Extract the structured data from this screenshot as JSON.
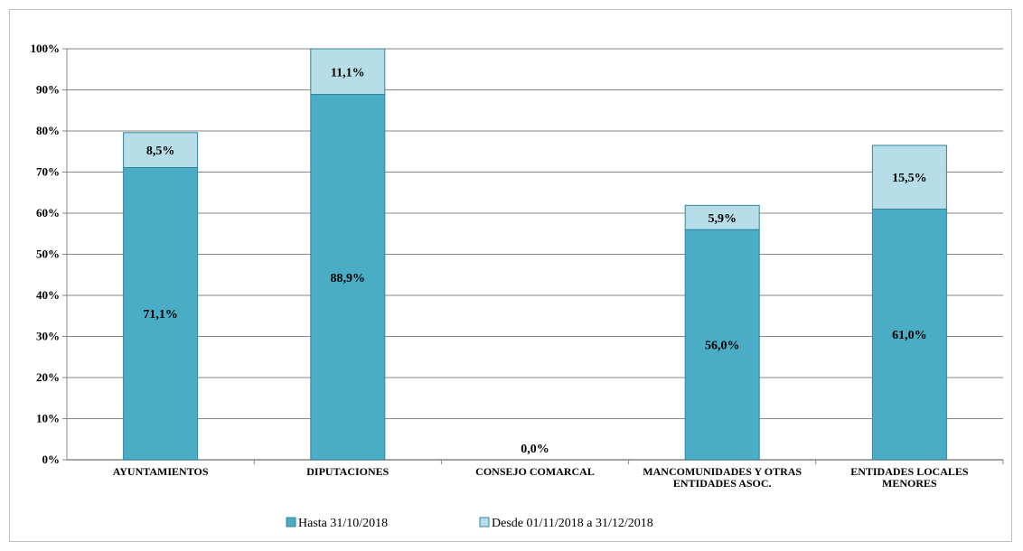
{
  "chart_data": {
    "type": "bar",
    "stacked": true,
    "title": "",
    "xlabel": "",
    "ylabel": "",
    "ylim": [
      0,
      100
    ],
    "yticks": [
      "0%",
      "10%",
      "20%",
      "30%",
      "40%",
      "50%",
      "60%",
      "70%",
      "80%",
      "90%",
      "100%"
    ],
    "grid": true,
    "legend_position": "bottom",
    "categories": [
      [
        "AYUNTAMIENTOS"
      ],
      [
        "DIPUTACIONES"
      ],
      [
        "CONSEJO COMARCAL"
      ],
      [
        "MANCOMUNIDADES Y OTRAS",
        "ENTIDADES ASOC."
      ],
      [
        "ENTIDADES LOCALES",
        "MENORES"
      ]
    ],
    "series": [
      {
        "name": "Hasta 31/10/2018",
        "color": "#4bacc6",
        "values": [
          71.1,
          88.9,
          0.0,
          56.0,
          61.0
        ],
        "labels": [
          "71,1%",
          "88,9%",
          "0,0%",
          "56,0%",
          "61,0%"
        ]
      },
      {
        "name": "Desde 01/11/2018 a 31/12/2018",
        "color": "#b7dee8",
        "values": [
          8.5,
          11.1,
          0.0,
          5.9,
          15.5
        ],
        "labels": [
          "8,5%",
          "11,1%",
          "",
          "5,9%",
          "15,5%"
        ]
      }
    ]
  }
}
